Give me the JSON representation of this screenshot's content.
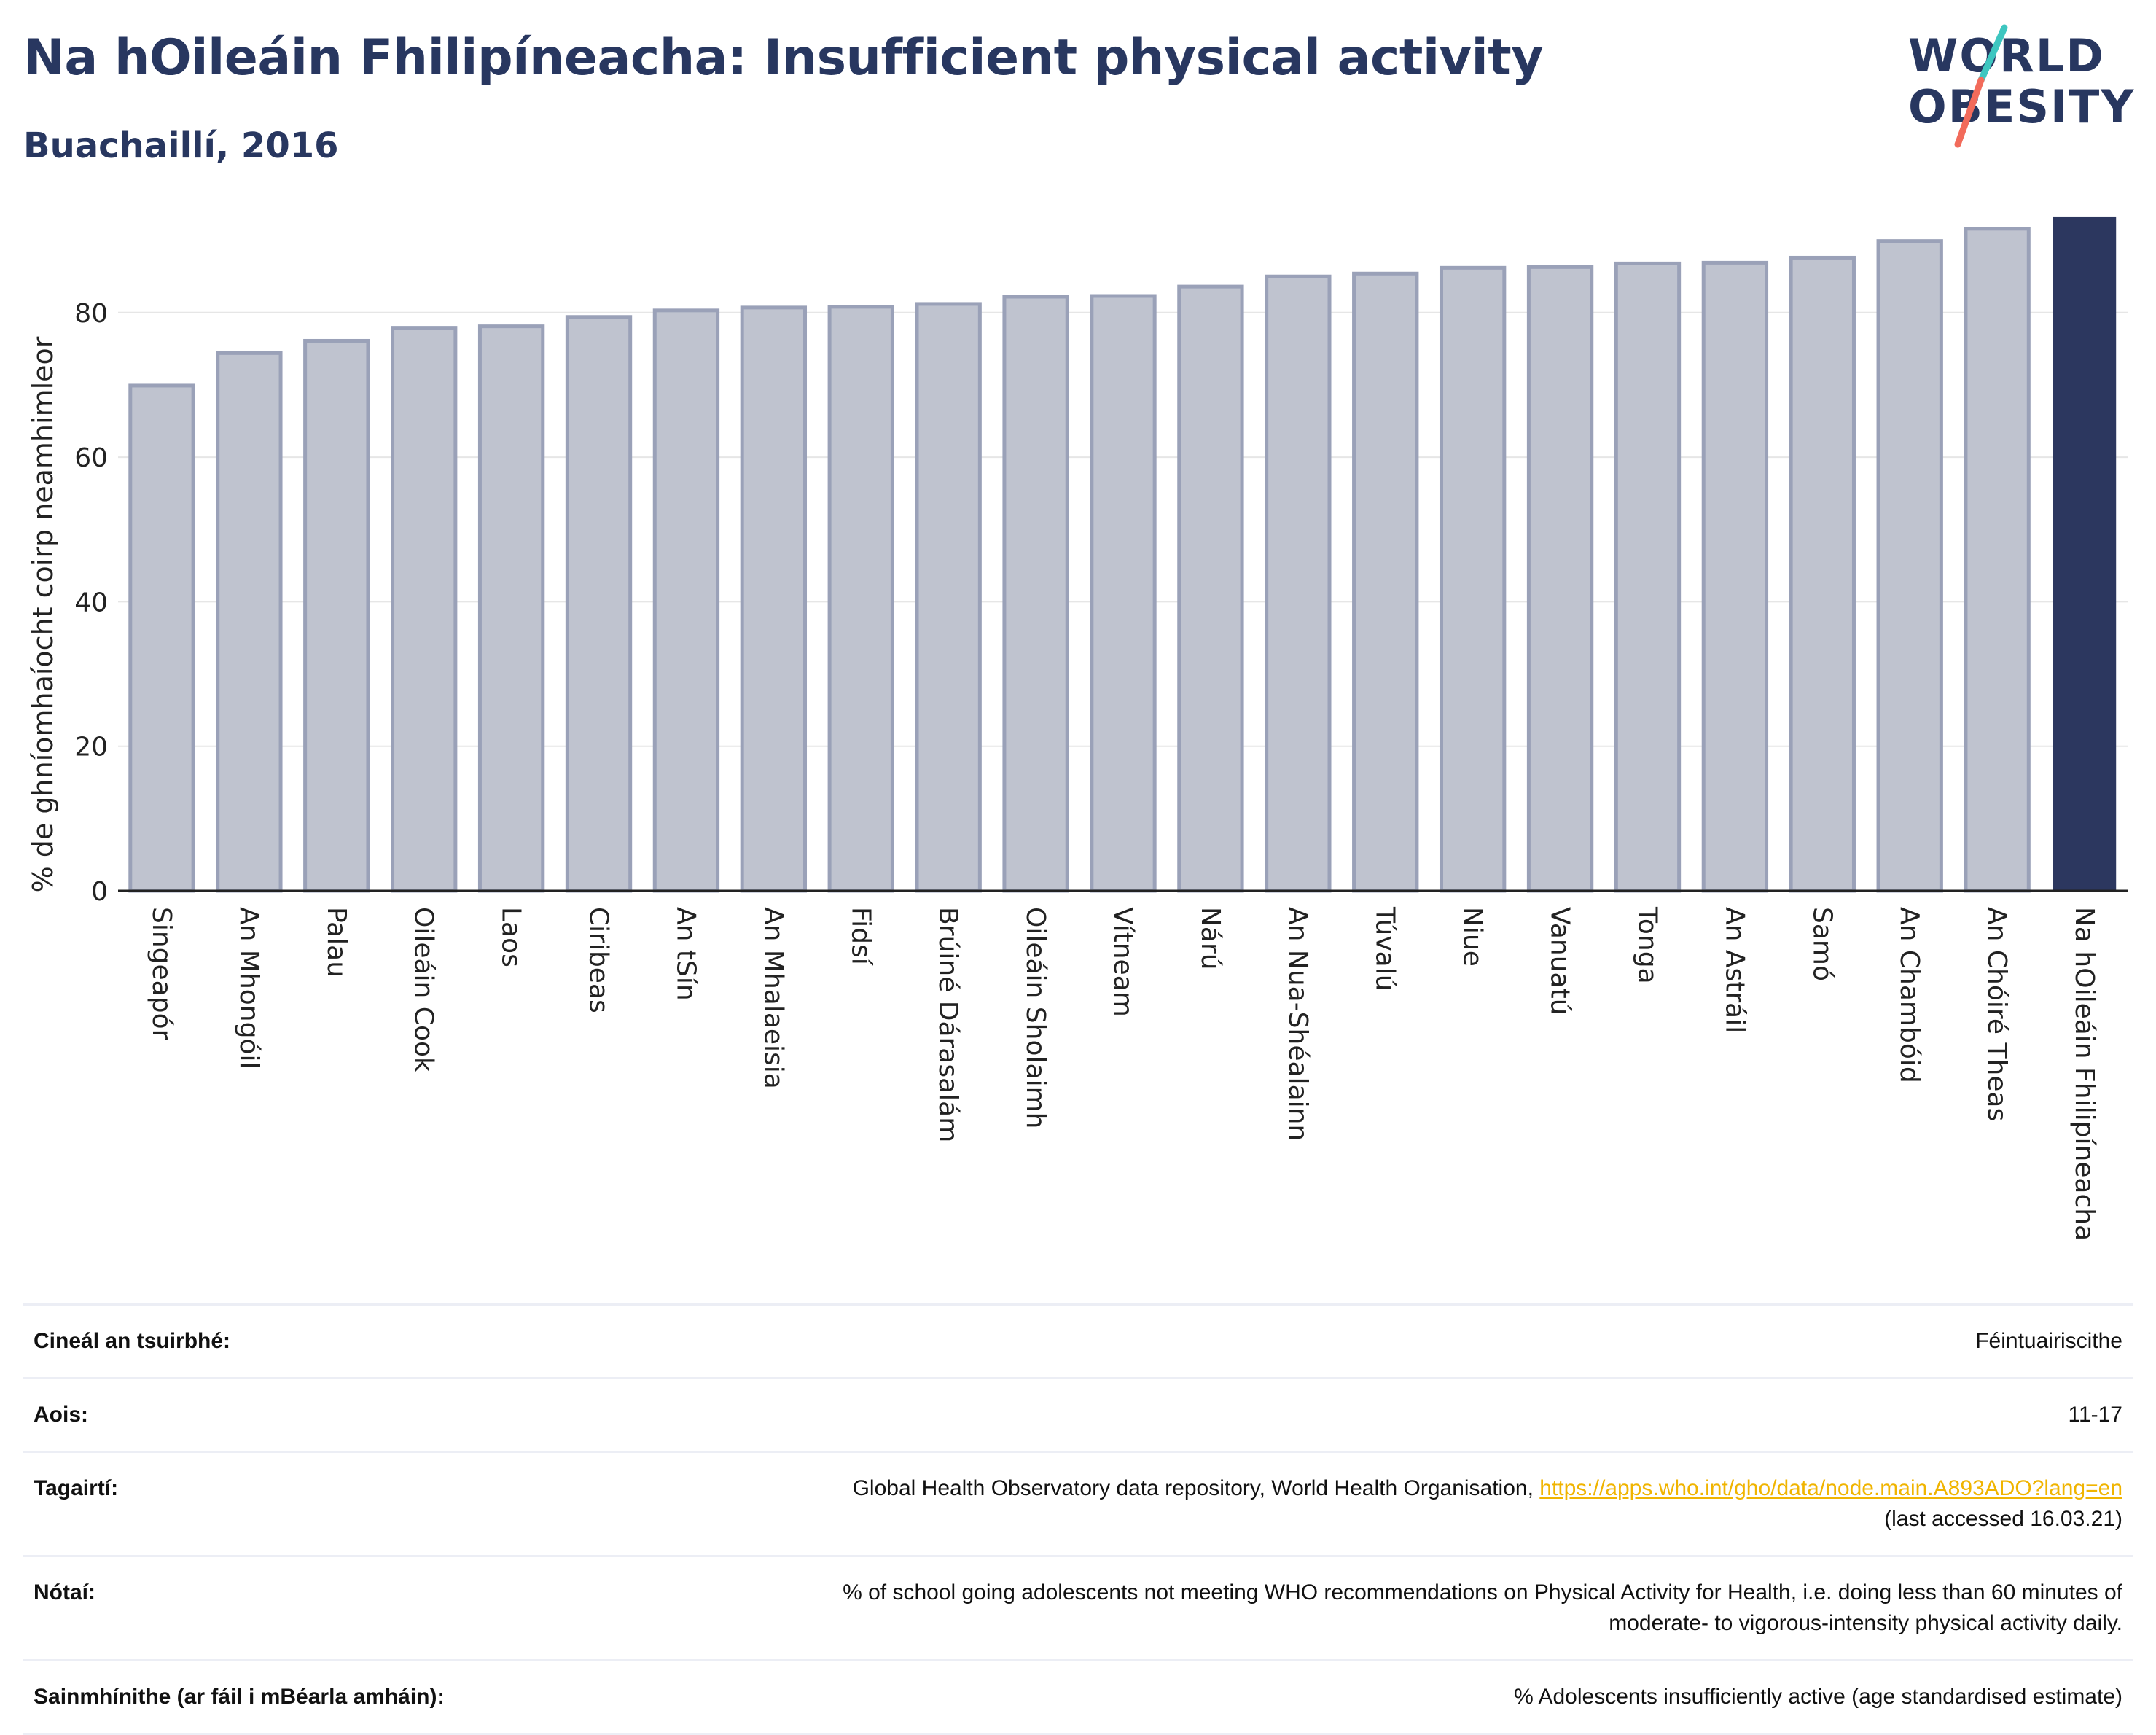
{
  "header": {
    "title": "Na hOileáin Fhilipíneacha: Insufficient physical activity",
    "subtitle": "Buachaillí, 2016"
  },
  "logo": {
    "line1": "WORLD",
    "line2": "OBESITY"
  },
  "colors": {
    "title": "#283760",
    "bar_other_fill": "#bfc3cf",
    "bar_other_stroke": "#9aa1b8",
    "bar_highlight": "#2c375f",
    "grid": "#e6e6e6",
    "logo_teal": "#3ec6c0",
    "logo_coral": "#f26b5b",
    "link": "#f0b400"
  },
  "chart_data": {
    "type": "bar",
    "ylabel": "% de ghníomhaíocht coirp neamhimleor",
    "ylim": [
      0,
      94
    ],
    "yticks": [
      0,
      20,
      40,
      60,
      80
    ],
    "grid": true,
    "categories": [
      "Singeapór",
      "An Mhongóil",
      "Palau",
      "Oileáin Cook",
      "Laos",
      "Ciribeas",
      "An tSín",
      "An Mhalaeisia",
      "Fidsí",
      "Brúiné Dárasalám",
      "Oileáin Sholaimh",
      "Vítneam",
      "Nárú",
      "An Nua-Shéalainn",
      "Túvalú",
      "Niue",
      "Vanuatú",
      "Tonga",
      "An Astráil",
      "Samó",
      "An Chambóid",
      "An Chóiré Theas",
      "Na hOileáin Fhilipíneacha"
    ],
    "values": [
      69.9,
      74.4,
      76.1,
      77.9,
      78.1,
      79.4,
      80.3,
      80.7,
      80.8,
      81.2,
      82.2,
      82.3,
      83.6,
      85.0,
      85.4,
      86.2,
      86.3,
      86.8,
      86.9,
      87.6,
      89.9,
      91.6,
      93.3
    ],
    "highlight": "Na hOileáin Fhilipíneacha"
  },
  "info_table": {
    "rows": [
      {
        "label": "Cineál an tsuirbhé:",
        "value": "Féintuairiscithe"
      },
      {
        "label": "Aois:",
        "value": "11-17"
      },
      {
        "label": "Tagairtí:",
        "value": "Global Health Observatory data repository, World Health Organisation, ",
        "link": "https://apps.who.int/gho/data/node.main.A893ADO?lang=en",
        "value2": "(last accessed 16.03.21)"
      },
      {
        "label": "Nótaí:",
        "value": "% of school going adolescents not meeting WHO recommendations on Physical Activity for Health, i.e. doing less than 60 minutes of",
        "value2": "moderate- to vigorous-intensity physical activity daily."
      },
      {
        "label": "Sainmhínithe (ar fáil i mBéarla amháin):",
        "value": "% Adolescents insufficiently active (age standardised estimate)"
      }
    ]
  }
}
